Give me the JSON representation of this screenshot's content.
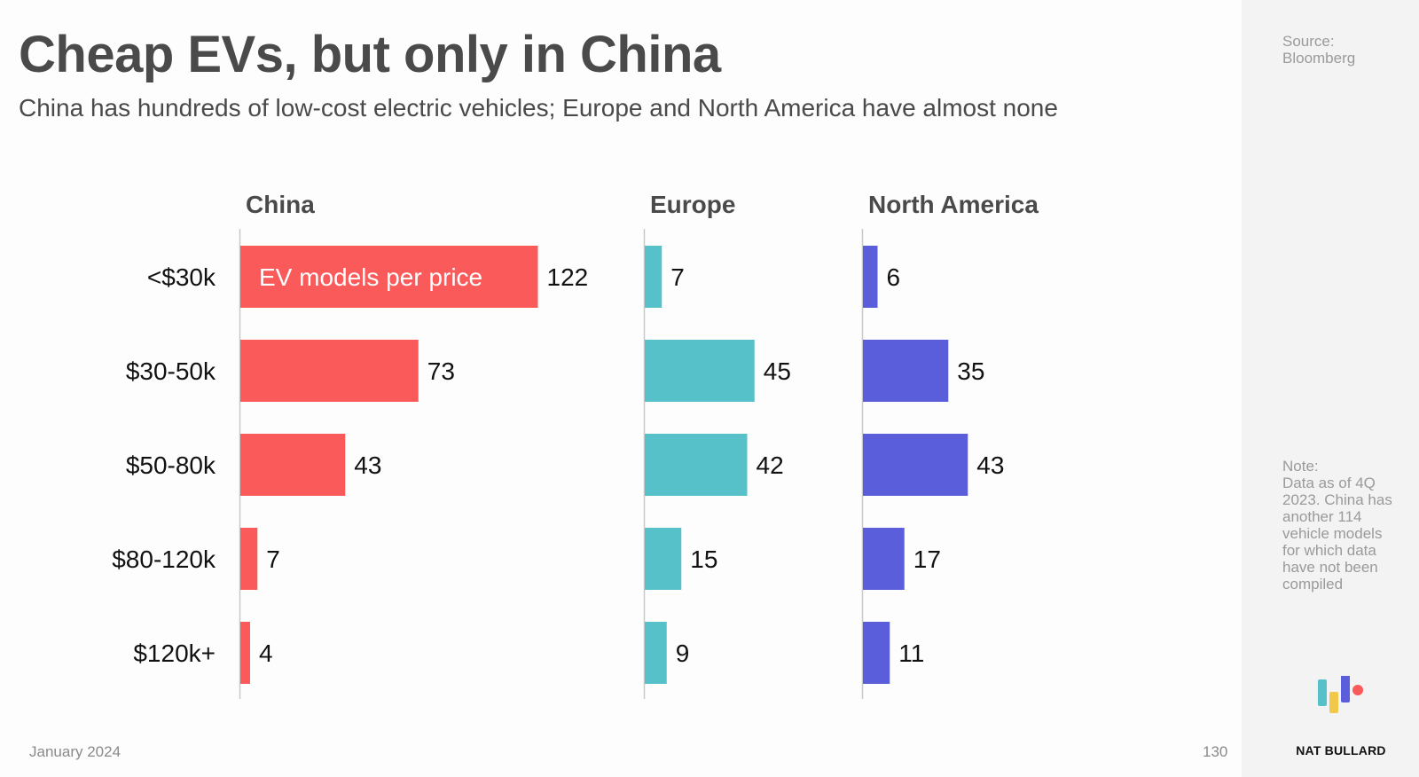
{
  "header": {
    "title": "Cheap EVs, but only in China",
    "subtitle": "China has hundreds of low-cost electric vehicles; Europe and North America have almost none"
  },
  "footer": {
    "date": "January 2024",
    "page_number": "130"
  },
  "sidebar": {
    "source_label": "Source:",
    "source_value": "Bloomberg",
    "note_label": "Note:",
    "note_text": "Data as of 4Q 2023. China has another 114 vehicle models for which data have not been compiled",
    "brand_name": "NAT BULLARD"
  },
  "colors": {
    "china": "#fa5a5a",
    "europe": "#56c1c9",
    "north_america": "#5b5edb",
    "text": "#4a4a4a",
    "muted": "#9a9a9a",
    "sidebar_bg": "#f3f3f3"
  },
  "chart_data": {
    "type": "bar",
    "orientation": "horizontal",
    "categories": [
      "<$30k",
      "$30-50k",
      "$50-80k",
      "$80-120k",
      "$120k+"
    ],
    "annotation": "EV models per price",
    "series": [
      {
        "name": "China",
        "values": [
          122,
          73,
          43,
          7,
          4
        ]
      },
      {
        "name": "Europe",
        "values": [
          7,
          45,
          42,
          15,
          9
        ]
      },
      {
        "name": "North America",
        "values": [
          6,
          35,
          43,
          17,
          11
        ]
      }
    ],
    "grid": false,
    "legend": "none"
  }
}
